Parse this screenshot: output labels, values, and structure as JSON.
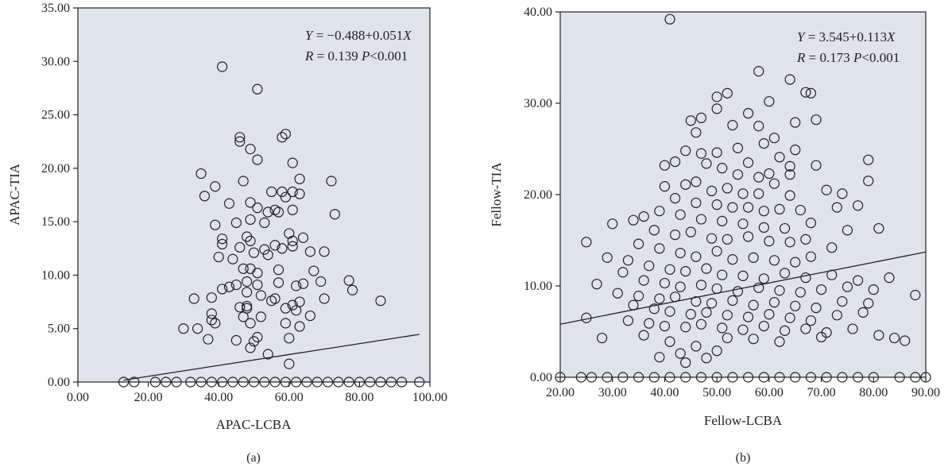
{
  "chart_data": [
    {
      "type": "scatter",
      "panel_label": "(a)",
      "xlabel": "APAC-LCBA",
      "ylabel": "APAC-TIA",
      "xlim": [
        0,
        100
      ],
      "ylim": [
        0,
        35
      ],
      "x_ticks": [
        "0.00",
        "20.00",
        "40.00",
        "60.00",
        "80.00",
        "100.00"
      ],
      "y_ticks": [
        "0.00",
        "5.00",
        "10.00",
        "15.00",
        "20.00",
        "25.00",
        "30.00",
        "35.00"
      ],
      "equation": {
        "y": "Y",
        "eq": " = −0.488+0.051",
        "x": "X"
      },
      "stats": {
        "r": "R",
        "r_eq": " = 0.139 ",
        "p": "P",
        "p_eq": "<0.001"
      },
      "regression": {
        "intercept": -0.488,
        "slope": 0.051,
        "x_range": [
          13,
          97
        ]
      },
      "points": [
        [
          41,
          29.5
        ],
        [
          51,
          27.4
        ],
        [
          46,
          22.9
        ],
        [
          46,
          22.5
        ],
        [
          49,
          21.8
        ],
        [
          59,
          23.2
        ],
        [
          58,
          22.9
        ],
        [
          51,
          20.8
        ],
        [
          61,
          20.5
        ],
        [
          35,
          19.5
        ],
        [
          47,
          18.8
        ],
        [
          63,
          19
        ],
        [
          72,
          18.8
        ],
        [
          39,
          18.3
        ],
        [
          58,
          17.8
        ],
        [
          55,
          17.8
        ],
        [
          36,
          17.4
        ],
        [
          59,
          17.3
        ],
        [
          61,
          17.8
        ],
        [
          63,
          17.6
        ],
        [
          49,
          16.8
        ],
        [
          43,
          16.7
        ],
        [
          51,
          16.3
        ],
        [
          56,
          16.1
        ],
        [
          54,
          15.9
        ],
        [
          57,
          15.9
        ],
        [
          61,
          16.1
        ],
        [
          73,
          15.7
        ],
        [
          49,
          15.2
        ],
        [
          39,
          14.7
        ],
        [
          45,
          14.9
        ],
        [
          53,
          14.9
        ],
        [
          48,
          13.6
        ],
        [
          41,
          13.4
        ],
        [
          60,
          13.9
        ],
        [
          61,
          13.2
        ],
        [
          64,
          13.5
        ],
        [
          49,
          13.2
        ],
        [
          41,
          12.9
        ],
        [
          56,
          12.8
        ],
        [
          46,
          12.6
        ],
        [
          53,
          12.4
        ],
        [
          58,
          12.5
        ],
        [
          61,
          12.7
        ],
        [
          50,
          12.1
        ],
        [
          54,
          11.9
        ],
        [
          66,
          12.2
        ],
        [
          70,
          12.2
        ],
        [
          40,
          11.7
        ],
        [
          44,
          11.5
        ],
        [
          47,
          10.6
        ],
        [
          49,
          10.6
        ],
        [
          57,
          10.5
        ],
        [
          51,
          10.2
        ],
        [
          67,
          10.4
        ],
        [
          43,
          8.9
        ],
        [
          41,
          8.7
        ],
        [
          45,
          9.1
        ],
        [
          48,
          9.4
        ],
        [
          51,
          9.1
        ],
        [
          57,
          9.3
        ],
        [
          62,
          9
        ],
        [
          64,
          9.2
        ],
        [
          69,
          9.4
        ],
        [
          77,
          9.5
        ],
        [
          78,
          8.6
        ],
        [
          48,
          8.4
        ],
        [
          52,
          8.1
        ],
        [
          33,
          7.8
        ],
        [
          38,
          7.9
        ],
        [
          56,
          7.8
        ],
        [
          55,
          7.6
        ],
        [
          63,
          7.5
        ],
        [
          70,
          7.8
        ],
        [
          86,
          7.6
        ],
        [
          48,
          7.1
        ],
        [
          48,
          6.9
        ],
        [
          46,
          7
        ],
        [
          61,
          7.2
        ],
        [
          59,
          6.9
        ],
        [
          38,
          6.4
        ],
        [
          38,
          5.8
        ],
        [
          47,
          6.1
        ],
        [
          52,
          6.1
        ],
        [
          62,
          6.7
        ],
        [
          66,
          6.2
        ],
        [
          39,
          5.5
        ],
        [
          49,
          5.5
        ],
        [
          59,
          5.5
        ],
        [
          63,
          5.2
        ],
        [
          30,
          5
        ],
        [
          34,
          5
        ],
        [
          51,
          4.2
        ],
        [
          45,
          3.9
        ],
        [
          37,
          4
        ],
        [
          50,
          3.8
        ],
        [
          49,
          3.2
        ],
        [
          54,
          2.6
        ],
        [
          60,
          1.7
        ],
        [
          60,
          4.1
        ],
        [
          13,
          0
        ],
        [
          16,
          0
        ],
        [
          22,
          0
        ],
        [
          25,
          0
        ],
        [
          28,
          0
        ],
        [
          32,
          0
        ],
        [
          35,
          0
        ],
        [
          38,
          0
        ],
        [
          41,
          0
        ],
        [
          44,
          0
        ],
        [
          47,
          0
        ],
        [
          50,
          0
        ],
        [
          53,
          0
        ],
        [
          56,
          0
        ],
        [
          59,
          0
        ],
        [
          62,
          0
        ],
        [
          65,
          0
        ],
        [
          68,
          0
        ],
        [
          71,
          0
        ],
        [
          74,
          0
        ],
        [
          77,
          0
        ],
        [
          80,
          0
        ],
        [
          83,
          0
        ],
        [
          86,
          0
        ],
        [
          89,
          0
        ],
        [
          92,
          0
        ],
        [
          97,
          0
        ]
      ]
    },
    {
      "type": "scatter",
      "panel_label": "(b)",
      "xlabel": "Fellow-LCBA",
      "ylabel": "Fellow-TIA",
      "xlim": [
        20,
        90
      ],
      "ylim": [
        0,
        40
      ],
      "x_ticks": [
        "20.00",
        "30.00",
        "40.00",
        "50.00",
        "60.00",
        "70.00",
        "80.00",
        "90.00"
      ],
      "y_ticks": [
        "0.00",
        "10.00",
        "20.00",
        "30.00",
        "40.00"
      ],
      "equation": {
        "y": "Y",
        "eq": " = 3.545+0.113",
        "x": "X"
      },
      "stats": {
        "r": "R",
        "r_eq": " = 0.173 ",
        "p": "P",
        "p_eq": "<0.001"
      },
      "regression": {
        "intercept": 3.545,
        "slope": 0.113,
        "x_range": [
          20,
          90
        ]
      },
      "points": [
        [
          41,
          39.2
        ],
        [
          58,
          33.5
        ],
        [
          64,
          32.6
        ],
        [
          50,
          30.7
        ],
        [
          52,
          31.1
        ],
        [
          60,
          30.2
        ],
        [
          67,
          31.2
        ],
        [
          68,
          31.1
        ],
        [
          47,
          28.4
        ],
        [
          45,
          28.1
        ],
        [
          50,
          29.4
        ],
        [
          56,
          28.9
        ],
        [
          65,
          27.9
        ],
        [
          69,
          28.2
        ],
        [
          46,
          26.8
        ],
        [
          53,
          27.6
        ],
        [
          58,
          27.5
        ],
        [
          61,
          26.2
        ],
        [
          54,
          25.1
        ],
        [
          59,
          25.6
        ],
        [
          65,
          24.9
        ],
        [
          44,
          24.8
        ],
        [
          47,
          24.5
        ],
        [
          50,
          24.6
        ],
        [
          62,
          24.1
        ],
        [
          48,
          23.4
        ],
        [
          56,
          23.5
        ],
        [
          64,
          23.1
        ],
        [
          69,
          23.2
        ],
        [
          79,
          23.8
        ],
        [
          42,
          23.6
        ],
        [
          40,
          23.2
        ],
        [
          51,
          22.9
        ],
        [
          54,
          22.2
        ],
        [
          60,
          22.3
        ],
        [
          64,
          22.2
        ],
        [
          58,
          21.9
        ],
        [
          46,
          21.4
        ],
        [
          40,
          20.9
        ],
        [
          44,
          21.1
        ],
        [
          49,
          20.4
        ],
        [
          52,
          20.7
        ],
        [
          55,
          20.1
        ],
        [
          58,
          20.1
        ],
        [
          61,
          21.2
        ],
        [
          64,
          19.9
        ],
        [
          71,
          20.5
        ],
        [
          74,
          20.1
        ],
        [
          79,
          21.5
        ],
        [
          42,
          19.6
        ],
        [
          46,
          19.1
        ],
        [
          50,
          18.9
        ],
        [
          53,
          18.6
        ],
        [
          56,
          18.6
        ],
        [
          59,
          18.2
        ],
        [
          62,
          18.4
        ],
        [
          66,
          18.3
        ],
        [
          73,
          18.6
        ],
        [
          77,
          18.8
        ],
        [
          39,
          18.2
        ],
        [
          36,
          17.6
        ],
        [
          43,
          17.8
        ],
        [
          47,
          17.3
        ],
        [
          51,
          17.1
        ],
        [
          55,
          16.8
        ],
        [
          59,
          16.4
        ],
        [
          63,
          16.3
        ],
        [
          68,
          16.9
        ],
        [
          75,
          16.1
        ],
        [
          81,
          16.3
        ],
        [
          30,
          16.8
        ],
        [
          34,
          17.2
        ],
        [
          38,
          16.1
        ],
        [
          42,
          15.6
        ],
        [
          45,
          15.9
        ],
        [
          49,
          15.2
        ],
        [
          52,
          15.1
        ],
        [
          56,
          15.4
        ],
        [
          60,
          14.9
        ],
        [
          64,
          14.8
        ],
        [
          67,
          15.1
        ],
        [
          72,
          14.2
        ],
        [
          35,
          14.6
        ],
        [
          39,
          14.1
        ],
        [
          43,
          13.6
        ],
        [
          46,
          13.2
        ],
        [
          50,
          13.8
        ],
        [
          53,
          12.9
        ],
        [
          57,
          13.1
        ],
        [
          61,
          12.8
        ],
        [
          65,
          12.6
        ],
        [
          68,
          13.2
        ],
        [
          29,
          13.1
        ],
        [
          33,
          12.8
        ],
        [
          37,
          12.2
        ],
        [
          41,
          11.8
        ],
        [
          44,
          11.6
        ],
        [
          48,
          11.9
        ],
        [
          51,
          11.2
        ],
        [
          55,
          11.1
        ],
        [
          59,
          10.8
        ],
        [
          63,
          11.4
        ],
        [
          67,
          10.9
        ],
        [
          72,
          11.2
        ],
        [
          77,
          10.6
        ],
        [
          83,
          10.9
        ],
        [
          32,
          11.5
        ],
        [
          36,
          10.6
        ],
        [
          40,
          10.3
        ],
        [
          43,
          9.9
        ],
        [
          47,
          10.1
        ],
        [
          50,
          9.7
        ],
        [
          54,
          9.4
        ],
        [
          58,
          9.8
        ],
        [
          62,
          9.5
        ],
        [
          66,
          9.3
        ],
        [
          70,
          9.6
        ],
        [
          75,
          9.9
        ],
        [
          80,
          9.6
        ],
        [
          27,
          10.2
        ],
        [
          31,
          9.2
        ],
        [
          35,
          8.9
        ],
        [
          39,
          8.6
        ],
        [
          42,
          8.8
        ],
        [
          46,
          8.3
        ],
        [
          49,
          8.1
        ],
        [
          53,
          8.4
        ],
        [
          57,
          7.9
        ],
        [
          61,
          8.2
        ],
        [
          65,
          7.8
        ],
        [
          69,
          7.6
        ],
        [
          74,
          8.3
        ],
        [
          79,
          8.1
        ],
        [
          34,
          7.9
        ],
        [
          38,
          7.5
        ],
        [
          41,
          7.2
        ],
        [
          45,
          6.9
        ],
        [
          48,
          7.1
        ],
        [
          52,
          6.8
        ],
        [
          56,
          6.6
        ],
        [
          60,
          6.9
        ],
        [
          64,
          6.5
        ],
        [
          68,
          6.2
        ],
        [
          73,
          6.8
        ],
        [
          78,
          7.1
        ],
        [
          33,
          6.2
        ],
        [
          37,
          5.9
        ],
        [
          40,
          5.6
        ],
        [
          44,
          5.5
        ],
        [
          47,
          5.8
        ],
        [
          51,
          5.4
        ],
        [
          55,
          5.2
        ],
        [
          59,
          5.6
        ],
        [
          63,
          5.1
        ],
        [
          67,
          5.3
        ],
        [
          71,
          4.9
        ],
        [
          76,
          5.3
        ],
        [
          81,
          4.6
        ],
        [
          86,
          4
        ],
        [
          88,
          9
        ],
        [
          25,
          14.8
        ],
        [
          25,
          6.5
        ],
        [
          28,
          4.3
        ],
        [
          36,
          4.6
        ],
        [
          41,
          3.9
        ],
        [
          46,
          3.4
        ],
        [
          50,
          2.9
        ],
        [
          43,
          2.6
        ],
        [
          39,
          2.2
        ],
        [
          52,
          4.3
        ],
        [
          57,
          4.2
        ],
        [
          62,
          3.9
        ],
        [
          70,
          4.4
        ],
        [
          84,
          4.3
        ],
        [
          44,
          1.6
        ],
        [
          48,
          2.1
        ],
        [
          20,
          0
        ],
        [
          24,
          0
        ],
        [
          26,
          0
        ],
        [
          29,
          0
        ],
        [
          32,
          0
        ],
        [
          35,
          0
        ],
        [
          38,
          0
        ],
        [
          41,
          0
        ],
        [
          44,
          0
        ],
        [
          47,
          0
        ],
        [
          50,
          0
        ],
        [
          53,
          0
        ],
        [
          56,
          0
        ],
        [
          59,
          0
        ],
        [
          62,
          0
        ],
        [
          65,
          0
        ],
        [
          68,
          0
        ],
        [
          71,
          0
        ],
        [
          74,
          0
        ],
        [
          77,
          0
        ],
        [
          80,
          0
        ],
        [
          85,
          0
        ],
        [
          88,
          0
        ],
        [
          90,
          0
        ]
      ]
    }
  ]
}
